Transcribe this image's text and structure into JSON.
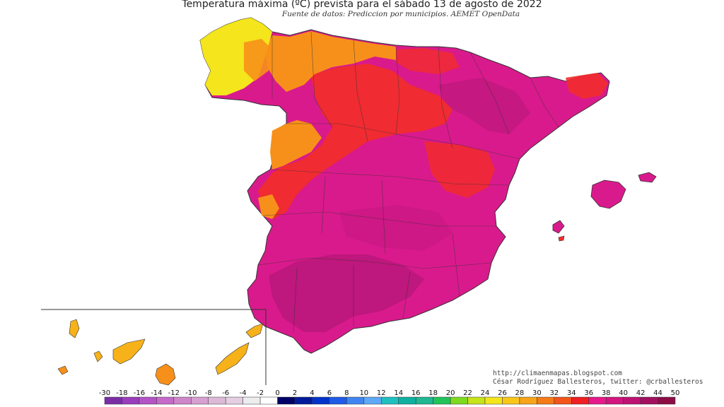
{
  "title": "Temperatura máxima (ºC) prevista para el sábado 13 de agosto de 2022",
  "subtitle": "Fuente de datos: Prediccion por municipios. AEMET OpenData",
  "credit": {
    "url": "http://climaenmapas.blogspot.com",
    "author": "César Rodríguez Ballesteros, twitter: @crballesteros"
  },
  "legend": {
    "unit": "ºC",
    "ticks": [
      "-30",
      "-18",
      "-16",
      "-14",
      "-12",
      "-10",
      "-8",
      "-6",
      "-4",
      "-2",
      "0",
      "2",
      "4",
      "6",
      "8",
      "10",
      "12",
      "14",
      "16",
      "18",
      "20",
      "22",
      "24",
      "26",
      "28",
      "30",
      "32",
      "34",
      "36",
      "38",
      "40",
      "42",
      "44",
      "50"
    ],
    "colors": [
      "#7a2ea6",
      "#9a3dbd",
      "#b453c6",
      "#c56ac9",
      "#cf85c9",
      "#d6a0cf",
      "#ddb9d8",
      "#e4cfe2",
      "#ededf0",
      "#ffffff",
      "#000066",
      "#001a99",
      "#0033cc",
      "#1f5be8",
      "#3f84f0",
      "#5fa8f5",
      "#20c0c0",
      "#10b0a0",
      "#1fb893",
      "#22c35a",
      "#7fd920",
      "#c7e31a",
      "#f4e51c",
      "#f9c71a",
      "#f7a41a",
      "#f47b18",
      "#f2541a",
      "#ef1f23",
      "#e5198a",
      "#d2157f",
      "#bd1272",
      "#a30f5f",
      "#8c0d45"
    ]
  },
  "map": {
    "region": "Península Ibérica e Islas Baleares (España)",
    "inset": "Islas Canarias",
    "dominant_colors": {
      "hot": "#d91a8c",
      "very_hot": "#b81875",
      "warm": "#f12c2c",
      "mild": "#f7901a",
      "cool": "#f4e51c"
    }
  }
}
